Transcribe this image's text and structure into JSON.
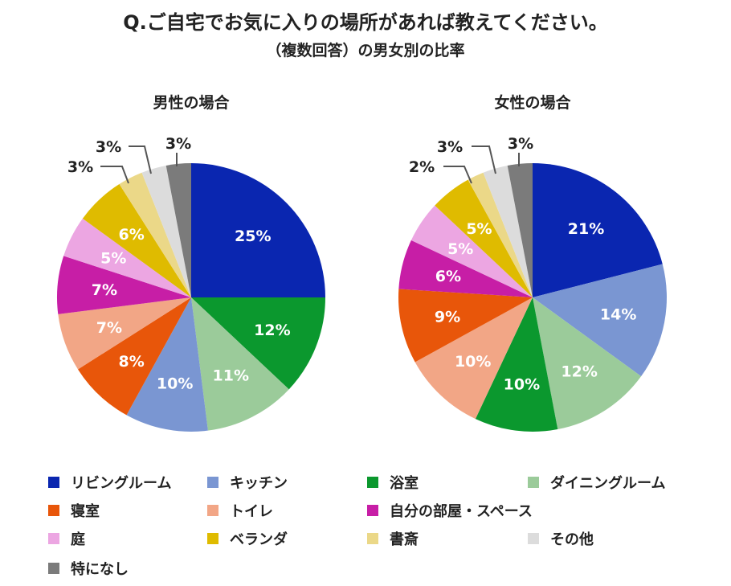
{
  "title": "Q.ご自宅でお気に入りの場所があれば教えてください。",
  "subtitle": "（複数回答）の男女別の比率",
  "chart_data": [
    {
      "type": "pie",
      "title": "男性の場合",
      "slices": [
        {
          "label": "リビングルーム",
          "value": 25
        },
        {
          "label": "浴室",
          "value": 12
        },
        {
          "label": "ダイニングルーム",
          "value": 11
        },
        {
          "label": "キッチン",
          "value": 10
        },
        {
          "label": "寝室",
          "value": 8
        },
        {
          "label": "トイレ",
          "value": 7
        },
        {
          "label": "自分の部屋・スペース",
          "value": 7
        },
        {
          "label": "庭",
          "value": 5
        },
        {
          "label": "ベランダ",
          "value": 6
        },
        {
          "label": "書斎",
          "value": 3
        },
        {
          "label": "その他",
          "value": 3
        },
        {
          "label": "特になし",
          "value": 3
        }
      ]
    },
    {
      "type": "pie",
      "title": "女性の場合",
      "slices": [
        {
          "label": "リビングルーム",
          "value": 21
        },
        {
          "label": "キッチン",
          "value": 14
        },
        {
          "label": "ダイニングルーム",
          "value": 12
        },
        {
          "label": "浴室",
          "value": 10
        },
        {
          "label": "トイレ",
          "value": 10
        },
        {
          "label": "寝室",
          "value": 9
        },
        {
          "label": "自分の部屋・スペース",
          "value": 6
        },
        {
          "label": "庭",
          "value": 5
        },
        {
          "label": "ベランダ",
          "value": 5
        },
        {
          "label": "書斎",
          "value": 2
        },
        {
          "label": "その他",
          "value": 3
        },
        {
          "label": "特になし",
          "value": 3
        }
      ]
    }
  ],
  "legend": [
    {
      "label": "リビングルーム",
      "color": "#0a26b0"
    },
    {
      "label": "キッチン",
      "color": "#7a96d2"
    },
    {
      "label": "浴室",
      "color": "#0b982e"
    },
    {
      "label": "ダイニングルーム",
      "color": "#9bcb9a"
    },
    {
      "label": "寝室",
      "color": "#e8560a"
    },
    {
      "label": "トイレ",
      "color": "#f2a686"
    },
    {
      "label": "自分の部屋・スペース",
      "color": "#c71ea6"
    },
    {
      "label": "庭",
      "color": "#eca6e2"
    },
    {
      "label": "ベランダ",
      "color": "#dfbb00"
    },
    {
      "label": "書斎",
      "color": "#ebd888"
    },
    {
      "label": "その他",
      "color": "#dcdcdc"
    },
    {
      "label": "特になし",
      "color": "#7b7b7b"
    }
  ],
  "value_suffix": "%"
}
